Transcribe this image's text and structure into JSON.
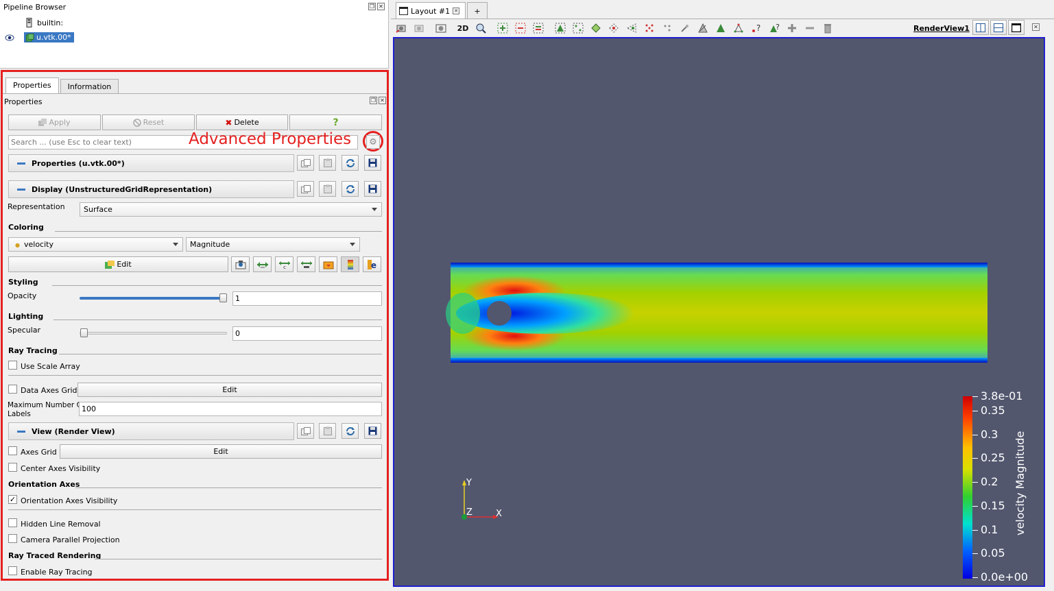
{
  "pipeline": {
    "title": "Pipeline Browser",
    "items": [
      {
        "label": "builtin:"
      },
      {
        "label": "u.vtk.00*"
      }
    ]
  },
  "tabs": {
    "properties": "Properties",
    "information": "Information"
  },
  "properties_panel": {
    "title": "Properties",
    "apply": "Apply",
    "reset": "Reset",
    "delete": "Delete",
    "help": "?",
    "search_placeholder": "Search ... (use Esc to clear text)",
    "advanced_annotation": "Advanced Properties"
  },
  "sections": {
    "properties": "Properties (u.vtk.00*)",
    "display": "Display (UnstructuredGridRepresentation)",
    "view": "View (Render View)"
  },
  "display": {
    "representation_label": "Representation",
    "representation_value": "Surface",
    "coloring_header": "Coloring",
    "color_array": "velocity",
    "color_component": "Magnitude",
    "edit_label": "Edit",
    "styling_header": "Styling",
    "opacity_label": "Opacity",
    "opacity_value": "1",
    "opacity_fraction": 1.0,
    "lighting_header": "Lighting",
    "specular_label": "Specular",
    "specular_value": "0",
    "specular_fraction": 0.0,
    "ray_tracing_header": "Ray Tracing",
    "use_scale_array": "Use Scale Array",
    "data_axes_grid": "Data Axes Grid",
    "data_axes_edit": "Edit",
    "max_labels_label_1": "Maximum Number Of",
    "max_labels_label_2": "Labels",
    "max_labels_value": "100"
  },
  "view": {
    "axes_grid": "Axes Grid",
    "axes_grid_edit": "Edit",
    "center_axes": "Center Axes Visibility",
    "orientation_header": "Orientation Axes",
    "orientation_visibility": "Orientation Axes Visibility",
    "hidden_line": "Hidden Line Removal",
    "camera_parallel": "Camera Parallel Projection",
    "ray_traced_header": "Ray Traced Rendering",
    "enable_ray_tracing": "Enable Ray Tracing"
  },
  "layout": {
    "tab_label": "Layout #1",
    "add_tab": "+",
    "toolbar_2d": "2D",
    "render_view_label": "RenderView1"
  },
  "colorbar": {
    "title": "velocity Magnitude",
    "labels": [
      "3.8e-01",
      "0.35",
      "0.3",
      "0.25",
      "0.2",
      "0.15",
      "0.1",
      "0.05",
      "0.0e+00"
    ]
  },
  "axes": {
    "x": "X",
    "y": "Y",
    "z": "Z"
  },
  "colors": {
    "highlight": "#e52020",
    "selection": "#3a78c3",
    "viewport_bg": "#52576e",
    "view_border": "#2020d0"
  }
}
